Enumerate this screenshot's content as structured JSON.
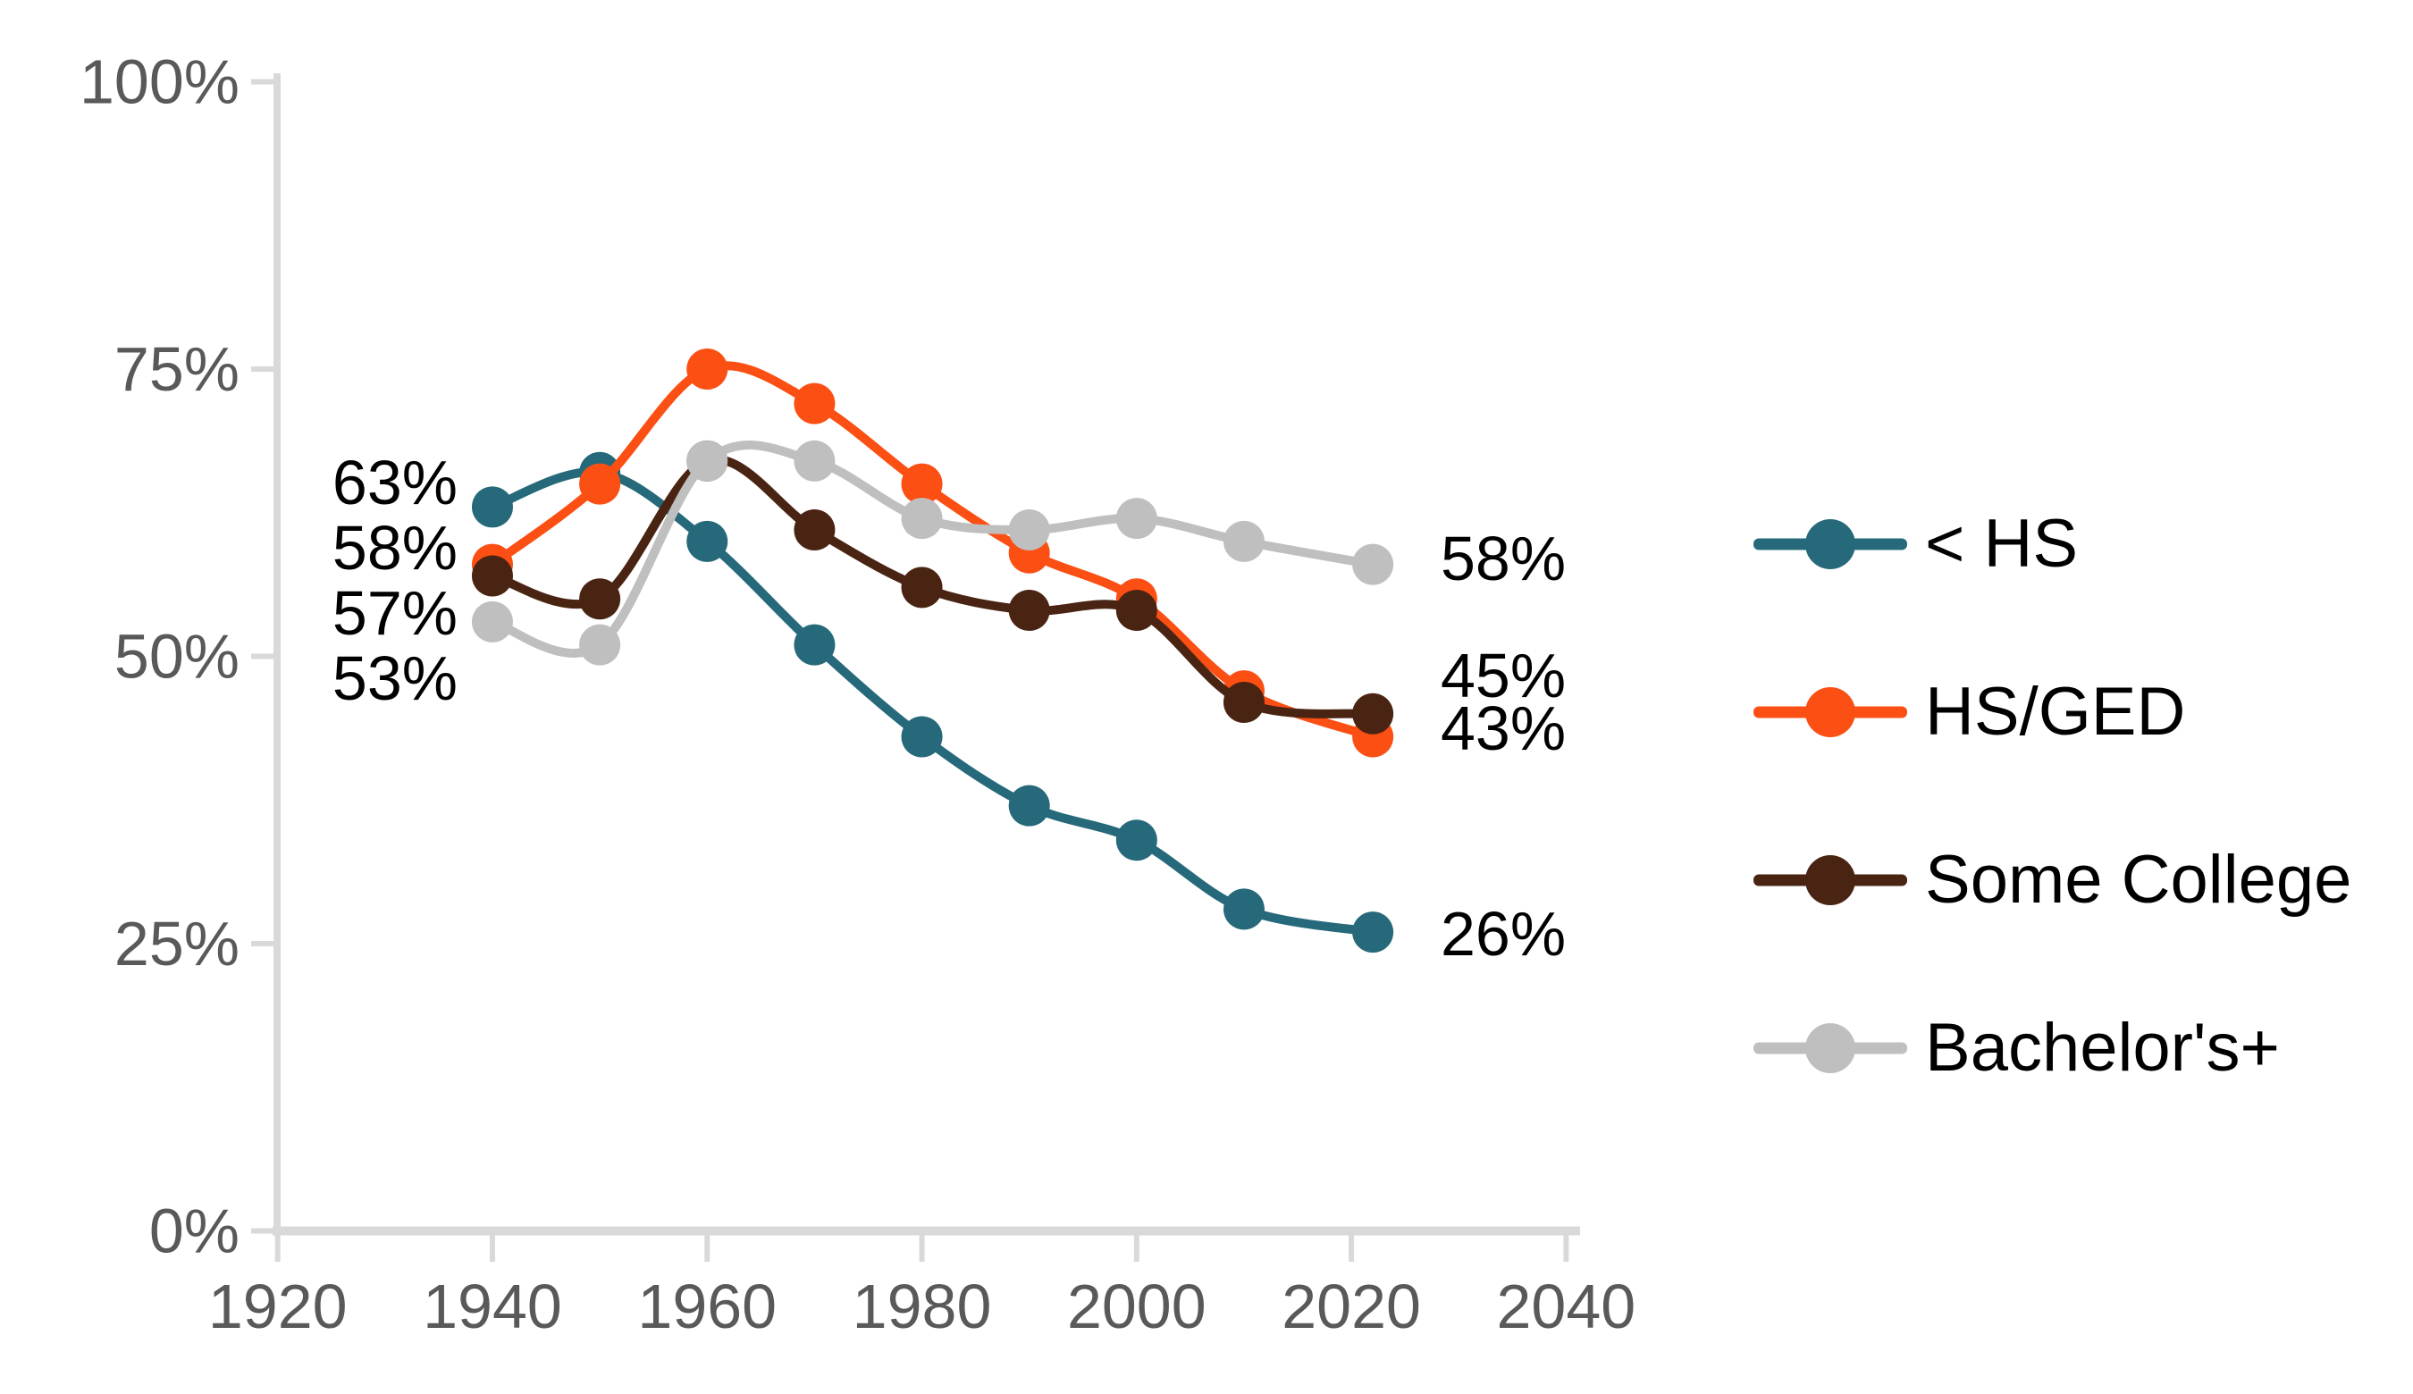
{
  "chart_data": {
    "type": "line",
    "title": "",
    "xlabel": "",
    "ylabel": "",
    "x": [
      1940,
      1950,
      1960,
      1970,
      1980,
      1990,
      2000,
      2010,
      2022
    ],
    "series": [
      {
        "name": "< HS",
        "color": "#26697A",
        "values": [
          63,
          66,
          60,
          51,
          43,
          37,
          34,
          28,
          26
        ],
        "start_label": "63%",
        "end_label": "26%"
      },
      {
        "name": "HS/GED",
        "color": "#FB4F14",
        "values": [
          58,
          65,
          75,
          72,
          65,
          59,
          55,
          47,
          43
        ],
        "start_label": "58%",
        "end_label": "43%"
      },
      {
        "name": "Some College",
        "color": "#4A2413",
        "values": [
          57,
          55,
          67,
          61,
          56,
          54,
          54,
          46,
          45
        ],
        "start_label": "57%",
        "end_label": "45%"
      },
      {
        "name": "Bachelor's+",
        "color": "#BFBFBF",
        "values": [
          53,
          51,
          67,
          67,
          62,
          61,
          62,
          60,
          58
        ],
        "start_label": "53%",
        "end_label": "58%"
      }
    ],
    "x_ticks": [
      "1920",
      "1940",
      "1960",
      "1980",
      "2000",
      "2020",
      "2040"
    ],
    "x_tick_years": [
      1920,
      1940,
      1960,
      1980,
      2000,
      2020,
      2040
    ],
    "y_ticks": [
      "100%",
      "75%",
      "50%",
      "25%",
      "0%"
    ],
    "y_tick_values": [
      100,
      75,
      50,
      25,
      0
    ],
    "xlim": [
      1920,
      2040
    ],
    "ylim": [
      0,
      100
    ],
    "grid": false,
    "legend_position": "right"
  },
  "colors": {
    "background": "#FFFFFF",
    "axis_line": "#D9D9D9",
    "tick_text": "#595959",
    "data_label_text": "#000000"
  }
}
